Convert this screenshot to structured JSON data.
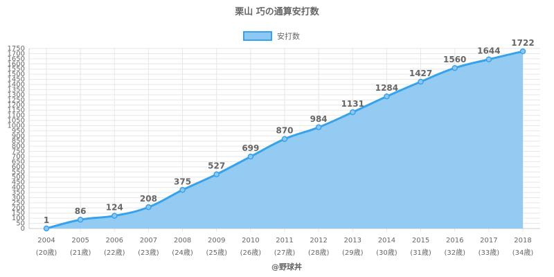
{
  "chart_data": {
    "type": "area",
    "title": "栗山 巧の通算安打数",
    "legend": {
      "position": "top",
      "entries": [
        "安打数"
      ]
    },
    "colors": {
      "line": "#36a2eb",
      "fill": "#8ec8f2",
      "grid": "#e6e6e6",
      "text": "#666666"
    },
    "categories": [
      "2004",
      "2005",
      "2006",
      "2007",
      "2008",
      "2009",
      "2010",
      "2011",
      "2012",
      "2013",
      "2014",
      "2015",
      "2016",
      "2017",
      "2018"
    ],
    "sublabels": [
      "(20歳)",
      "(21歳)",
      "(22歳)",
      "(23歳)",
      "(24歳)",
      "(25歳)",
      "(26歳)",
      "(27歳)",
      "(28歳)",
      "(29歳)",
      "(30歳)",
      "(31歳)",
      "(32歳)",
      "(33歳)",
      "(34歳)"
    ],
    "series": [
      {
        "name": "安打数",
        "values": [
          1,
          86,
          124,
          208,
          375,
          527,
          699,
          870,
          984,
          1131,
          1284,
          1427,
          1560,
          1644,
          1722
        ]
      }
    ],
    "ylim": [
      0,
      1750
    ],
    "ytick_step": 50,
    "grid": true
  },
  "credit": "@野球丼"
}
